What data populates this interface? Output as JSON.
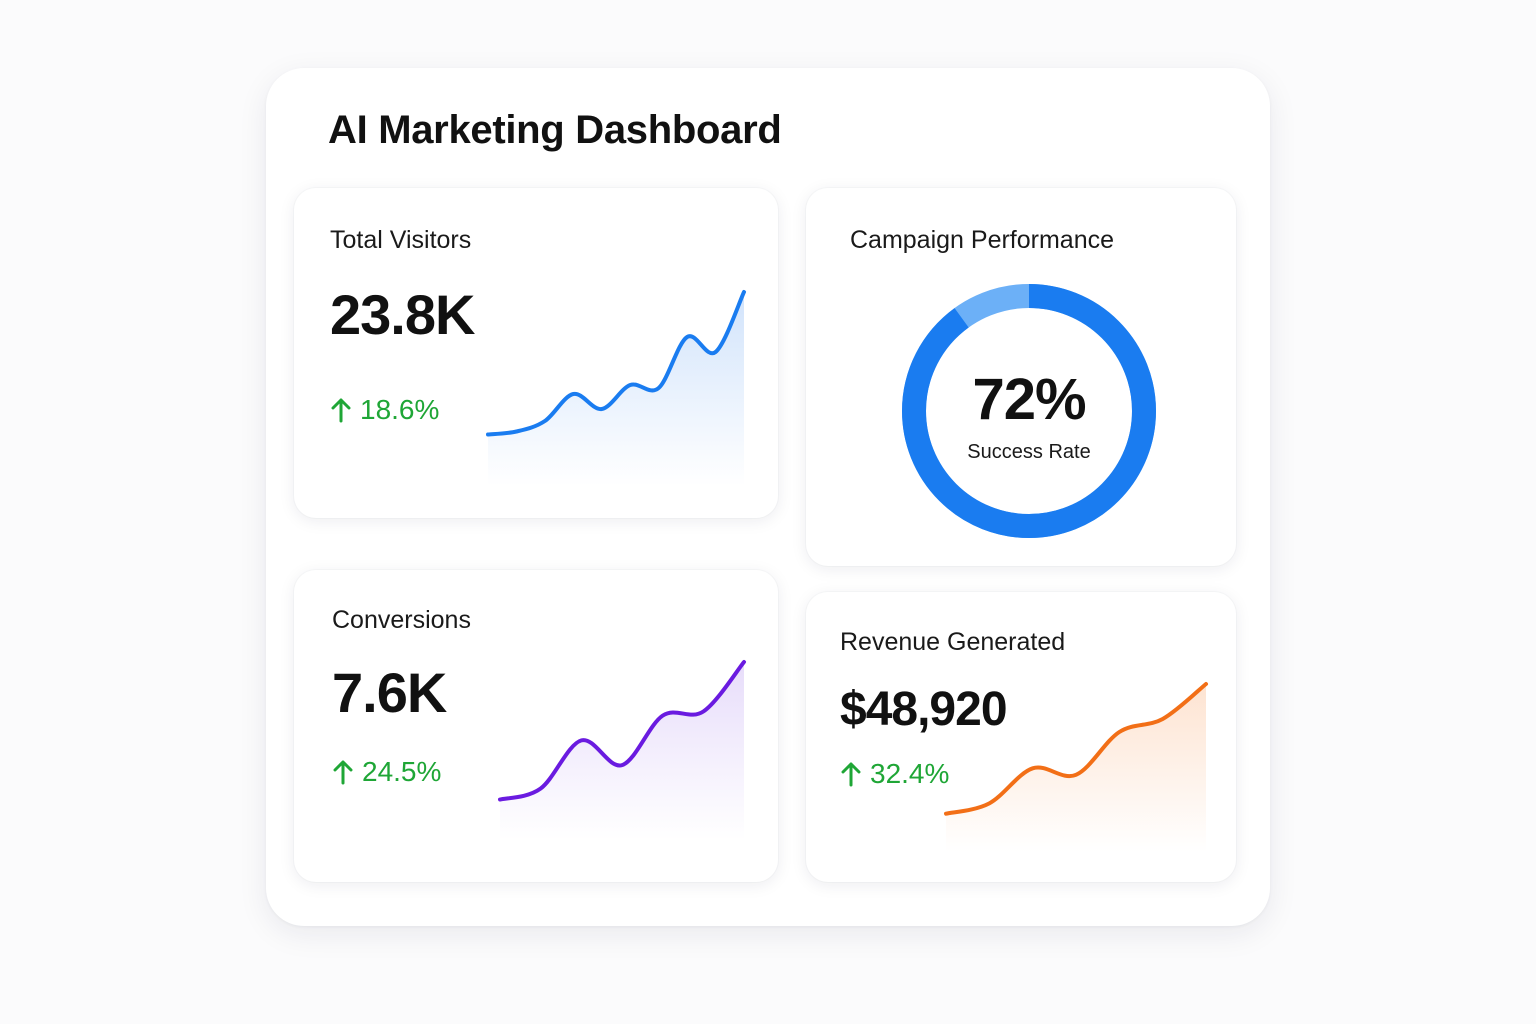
{
  "dashboard": {
    "title": "AI Marketing Dashboard"
  },
  "cards": {
    "visitors": {
      "title": "Total Visitors",
      "value": "23.8K",
      "delta": "18.6%",
      "trend_direction": "up",
      "line_color": "#1a7cf0",
      "fill_color": "#cfe2fb",
      "trend": [
        0.05,
        0.07,
        0.14,
        0.32,
        0.22,
        0.38,
        0.36,
        0.7,
        0.6,
        1.0
      ]
    },
    "campaign": {
      "title": "Campaign Performance",
      "value": "72%",
      "label": "Success Rate",
      "percent": 72,
      "ring_color": "#1a7cf0",
      "ring_highlight_color": "#6cb0f7"
    },
    "conversions": {
      "title": "Conversions",
      "value": "7.6K",
      "delta": "24.5%",
      "trend_direction": "up",
      "line_color": "#6a1be0",
      "fill_color": "#e6dbfa",
      "trend": [
        0.0,
        0.08,
        0.43,
        0.25,
        0.61,
        0.64,
        1.0
      ]
    },
    "revenue": {
      "title": "Revenue Generated",
      "value": "$48,920",
      "delta": "32.4%",
      "trend_direction": "up",
      "line_color": "#f26f17",
      "fill_color": "#fde2cf",
      "trend": [
        0.0,
        0.08,
        0.35,
        0.3,
        0.63,
        0.73,
        1.0
      ]
    }
  },
  "icons": {
    "delta_icon": "arrow-up-icon",
    "delta_color": "#1fa636"
  }
}
